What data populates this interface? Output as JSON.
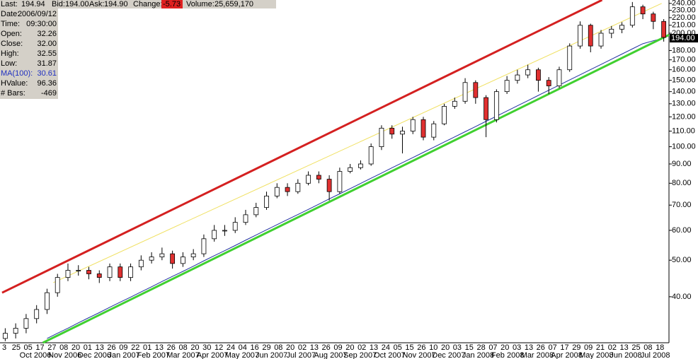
{
  "chart_data": {
    "type": "candlestick",
    "y_log": true,
    "quote": [
      {
        "label": "Last:",
        "value": "194.94"
      },
      {
        "label": "Bid:",
        "value": "194.00"
      },
      {
        "label": "Ask:",
        "value": "194.90"
      },
      {
        "label": "Change:",
        "value": "-5.73"
      },
      {
        "label": "Volume:",
        "value": "25,659,170"
      }
    ],
    "info": [
      {
        "label": "Date:",
        "value": "2006/09/12"
      },
      {
        "label": "Time:",
        "value": "09:30:00"
      },
      {
        "label": "Open:",
        "value": "32.26"
      },
      {
        "label": "Close:",
        "value": "32.00"
      },
      {
        "label": "High:",
        "value": "32.55"
      },
      {
        "label": "Low:",
        "value": "31.87"
      },
      {
        "label": "MA(100):",
        "value": "30.61"
      },
      {
        "label": "HValue:",
        "value": "96.36"
      },
      {
        "label": "# Bars:",
        "value": "-469"
      }
    ],
    "ylim": [
      30.2,
      245
    ],
    "yticks": [
      {
        "value": 40,
        "label": "40.00"
      },
      {
        "value": 50,
        "label": "50.00"
      },
      {
        "value": 60,
        "label": "60.00"
      },
      {
        "value": 70,
        "label": "70.00"
      },
      {
        "value": 80,
        "label": "80.00"
      },
      {
        "value": 90,
        "label": "90.00"
      },
      {
        "value": 100,
        "label": "100.00"
      },
      {
        "value": 110,
        "label": "110.00"
      },
      {
        "value": 120,
        "label": "120.00"
      },
      {
        "value": 130,
        "label": "130.00"
      },
      {
        "value": 140,
        "label": "140.00"
      },
      {
        "value": 150,
        "label": "150.00"
      },
      {
        "value": 160,
        "label": "160.00"
      },
      {
        "value": 170,
        "label": "170.00"
      },
      {
        "value": 180,
        "label": "180.00"
      },
      {
        "value": 200,
        "label": "200.00"
      },
      {
        "value": 210,
        "label": "210.00"
      },
      {
        "value": 220,
        "label": "220.00"
      },
      {
        "value": 230,
        "label": "230.00"
      },
      {
        "value": 240,
        "label": "240.00"
      }
    ],
    "last_price": {
      "value": 194,
      "label": "194.00"
    },
    "day_labels": [
      "3",
      "25",
      "05",
      "17",
      "27",
      "08",
      "20",
      "01",
      "13",
      "26",
      "09",
      "22",
      "01",
      "13",
      "26",
      "08",
      "20",
      "30",
      "12",
      "24",
      "04",
      "16",
      "29",
      "08",
      "20",
      "02",
      "13",
      "26",
      "09",
      "20",
      "02",
      "13",
      "24",
      "05",
      "15",
      "26",
      "10",
      "20",
      "03",
      "15",
      "28",
      "07",
      "20",
      "03",
      "13",
      "26",
      "07",
      "17",
      "29",
      "09",
      "21",
      "02",
      "13",
      "25",
      "08",
      "18"
    ],
    "month_labels": [
      "Oct 2006",
      "Nov 2006",
      "Dec 2006",
      "Jan 2007",
      "Feb 2007",
      "Mar 2007",
      "Apr 2007",
      "May 2007",
      "Jun 2007",
      "Jul 2007",
      "Aug 2007",
      "Sep 2007",
      "Oct 2007",
      "Nov 2007",
      "Dec 2007",
      "Jan 2008",
      "Feb 2008",
      "Mar 2008",
      "Apr 2008",
      "May 2008",
      "Jun 2008",
      "Jul 2008"
    ],
    "up_color": "#ffffff",
    "down_color": "#e03030",
    "open": [
      31,
      32,
      33,
      35,
      37,
      41,
      45,
      47,
      47,
      46,
      45,
      48,
      45,
      48,
      50,
      51,
      52,
      49,
      51,
      52,
      57,
      60,
      60,
      63,
      66,
      69,
      74,
      78,
      76,
      80,
      84,
      82,
      76,
      86,
      88,
      90,
      100,
      112,
      108,
      110,
      118,
      106,
      115,
      128,
      132,
      148,
      135,
      118,
      140,
      150,
      155,
      160,
      150,
      145,
      160,
      185,
      210,
      185,
      200,
      205,
      210,
      235,
      225,
      215
    ],
    "close": [
      32,
      33,
      35,
      37,
      41,
      45,
      47,
      47,
      46,
      45,
      48,
      45,
      48,
      50,
      51,
      52,
      49,
      51,
      52,
      57,
      60,
      60,
      63,
      66,
      69,
      74,
      78,
      76,
      80,
      84,
      82,
      76,
      86,
      88,
      90,
      100,
      112,
      108,
      110,
      118,
      106,
      115,
      128,
      132,
      148,
      135,
      118,
      140,
      150,
      155,
      160,
      150,
      145,
      160,
      185,
      210,
      185,
      200,
      205,
      210,
      235,
      225,
      215,
      195
    ],
    "high": [
      33,
      34,
      36,
      38,
      42,
      46,
      49,
      48.5,
      48,
      47,
      49,
      49,
      49,
      51.5,
      52.5,
      54,
      53,
      52.5,
      53.5,
      58.5,
      62,
      62,
      65,
      68,
      71,
      76,
      80,
      80,
      82,
      86,
      86,
      84,
      88,
      90,
      92,
      102,
      114,
      114,
      113,
      120,
      120,
      117,
      130,
      135,
      152,
      150,
      137,
      142,
      154,
      160,
      165,
      162,
      153,
      163,
      188,
      215,
      212,
      204,
      209,
      214,
      242,
      238,
      228,
      218
    ],
    "low": [
      30.5,
      31,
      32,
      34,
      36,
      40,
      44,
      45.5,
      44.5,
      43.5,
      44,
      44,
      44,
      47,
      49,
      50,
      47.5,
      48,
      50,
      51,
      56,
      58,
      59,
      62,
      65,
      68,
      73,
      74,
      75,
      79,
      80,
      72,
      75,
      85,
      87,
      89,
      98,
      105,
      96,
      108,
      104,
      104,
      114,
      126,
      130,
      130,
      106,
      116,
      138,
      147,
      152,
      140,
      138,
      143,
      158,
      182,
      178,
      182,
      194,
      200,
      207,
      218,
      205,
      190
    ],
    "ma": {
      "color": "#2030a0",
      "values": [
        null,
        null,
        null,
        null,
        31,
        32,
        33,
        34.1,
        35.2,
        36.3,
        37.5,
        38.7,
        39.9,
        41.2,
        42.5,
        43.9,
        45.3,
        46.7,
        48.2,
        49.8,
        51.4,
        53,
        54.7,
        56.5,
        58.3,
        60.2,
        62.1,
        64.1,
        66.1,
        68.2,
        70.4,
        72.7,
        75,
        77.4,
        79.9,
        82.5,
        85.1,
        87.9,
        90.7,
        93.6,
        96.6,
        99.7,
        102.9,
        106.2,
        109.6,
        113.1,
        116.8,
        120.5,
        124.4,
        128.4,
        132.5,
        136.8,
        141.2,
        145.7,
        150.4,
        155.2,
        160.2,
        165.3,
        170.6,
        176.1,
        181.8,
        187.6,
        191,
        194
      ]
    },
    "trendlines": [
      {
        "color": "#d42020",
        "x": [
          -0.3,
          57.1
        ],
        "y": [
          41,
          245
        ]
      },
      {
        "color": "#f0e060",
        "x": [
          4.6,
          62.8
        ],
        "y": [
          43.6,
          240
        ]
      },
      {
        "color": "#40d030",
        "x": [
          3.6,
          63.5
        ],
        "y": [
          30.2,
          198
        ]
      }
    ]
  }
}
